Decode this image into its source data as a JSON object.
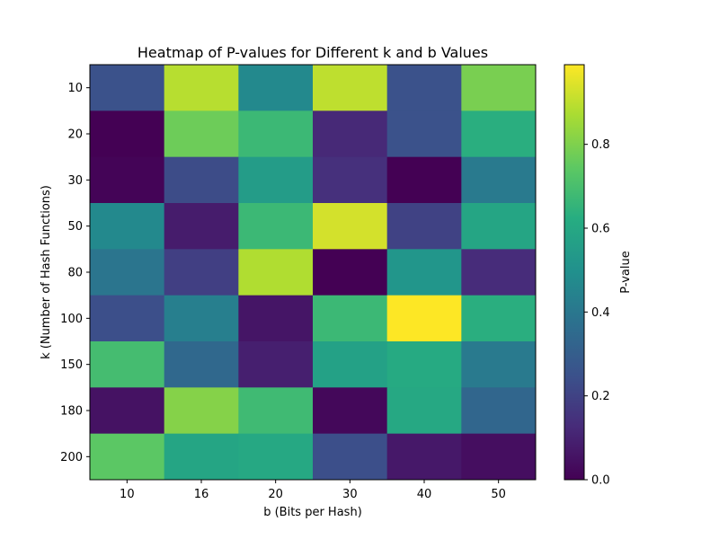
{
  "chart_data": {
    "type": "heatmap",
    "title": "Heatmap of P-values for Different k and b Values",
    "xlabel": "b (Bits per Hash)",
    "ylabel": "k (Number of Hash Functions)",
    "x_categories": [
      "10",
      "16",
      "20",
      "30",
      "40",
      "50"
    ],
    "y_categories": [
      "10",
      "20",
      "30",
      "50",
      "80",
      "100",
      "150",
      "180",
      "200"
    ],
    "values": [
      [
        0.25,
        0.89,
        0.47,
        0.9,
        0.25,
        0.79
      ],
      [
        0.0,
        0.77,
        0.67,
        0.12,
        0.25,
        0.63
      ],
      [
        0.01,
        0.23,
        0.55,
        0.14,
        0.0,
        0.41
      ],
      [
        0.47,
        0.08,
        0.67,
        0.93,
        0.2,
        0.59
      ],
      [
        0.39,
        0.19,
        0.88,
        0.0,
        0.52,
        0.13
      ],
      [
        0.24,
        0.43,
        0.06,
        0.67,
        0.99,
        0.63
      ],
      [
        0.69,
        0.34,
        0.09,
        0.57,
        0.61,
        0.41
      ],
      [
        0.05,
        0.81,
        0.68,
        0.02,
        0.6,
        0.33
      ],
      [
        0.74,
        0.59,
        0.6,
        0.24,
        0.07,
        0.04
      ]
    ],
    "colorbar": {
      "label": "P-value",
      "range": [
        0.0,
        0.99
      ],
      "ticks": [
        "0.0",
        "0.2",
        "0.4",
        "0.6",
        "0.8"
      ],
      "colormap": "viridis"
    }
  }
}
